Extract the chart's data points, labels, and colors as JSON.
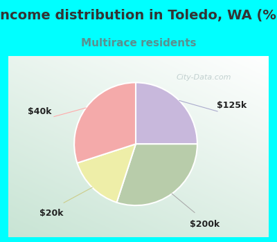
{
  "title": "Income distribution in Toledo, WA (%)",
  "subtitle": "Multirace residents",
  "title_color": "#333333",
  "subtitle_color": "#5a9090",
  "bg_color": "#00ffff",
  "chart_box_color": "#e8f4ec",
  "slices": [
    {
      "label": "$125k",
      "value": 25,
      "color": "#c8b8dc"
    },
    {
      "label": "$200k",
      "value": 30,
      "color": "#b8ccaa"
    },
    {
      "label": "$20k",
      "value": 15,
      "color": "#eeeea8"
    },
    {
      "label": "$40k",
      "value": 30,
      "color": "#f4aaaa"
    }
  ],
  "start_angle": 90,
  "wedge_edge_color": "#ffffff",
  "label_fontsize": 9,
  "title_fontsize": 14,
  "subtitle_fontsize": 11,
  "watermark": "City-Data.com",
  "watermark_color": "#b8c8c8"
}
